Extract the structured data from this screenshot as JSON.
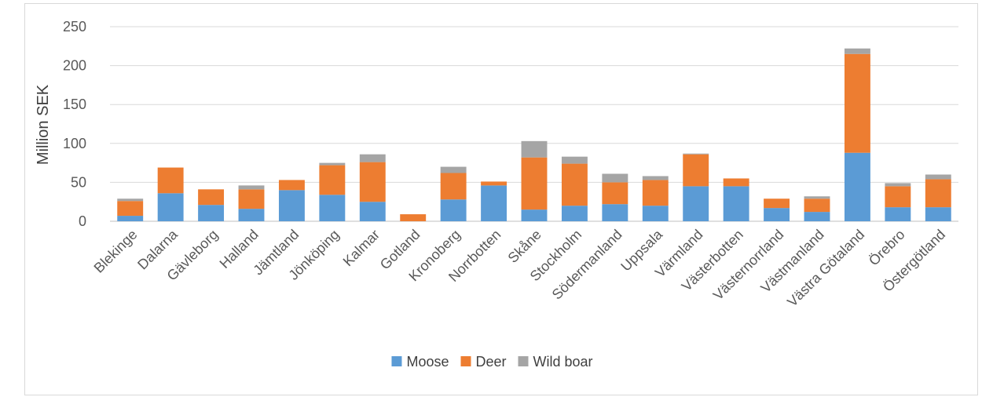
{
  "chart_data": {
    "type": "bar",
    "stacked": true,
    "title": "",
    "xlabel": "",
    "ylabel": "Million SEK",
    "ylim": [
      0,
      250
    ],
    "yticks": [
      0,
      50,
      100,
      150,
      200,
      250
    ],
    "grid": true,
    "legend_position": "bottom",
    "categories": [
      "Blekinge",
      "Dalarna",
      "Gävleborg",
      "Halland",
      "Jämtland",
      "Jönköping",
      "Kalmar",
      "Gotland",
      "Kronoberg",
      "Norrbotten",
      "Skåne",
      "Stockholm",
      "Södermanland",
      "Uppsala",
      "Värmland",
      "Västerbotten",
      "Västernorrland",
      "Västmanland",
      "Västra Götaland",
      "Örebro",
      "Östergötland"
    ],
    "series": [
      {
        "name": "Moose",
        "color": "#5b9bd5",
        "values": [
          7,
          36,
          21,
          16,
          40,
          34,
          25,
          0,
          28,
          46,
          15,
          20,
          22,
          20,
          45,
          45,
          17,
          12,
          88,
          18,
          18
        ]
      },
      {
        "name": "Deer",
        "color": "#ed7d31",
        "values": [
          19,
          33,
          20,
          25,
          13,
          38,
          51,
          9,
          34,
          5,
          67,
          54,
          28,
          33,
          41,
          10,
          12,
          17,
          127,
          27,
          36
        ]
      },
      {
        "name": "Wild boar",
        "color": "#a5a5a5",
        "values": [
          3,
          0,
          0,
          5,
          0,
          3,
          10,
          0,
          8,
          0,
          21,
          9,
          11,
          5,
          1,
          0,
          0,
          3,
          7,
          4,
          6
        ]
      }
    ]
  }
}
